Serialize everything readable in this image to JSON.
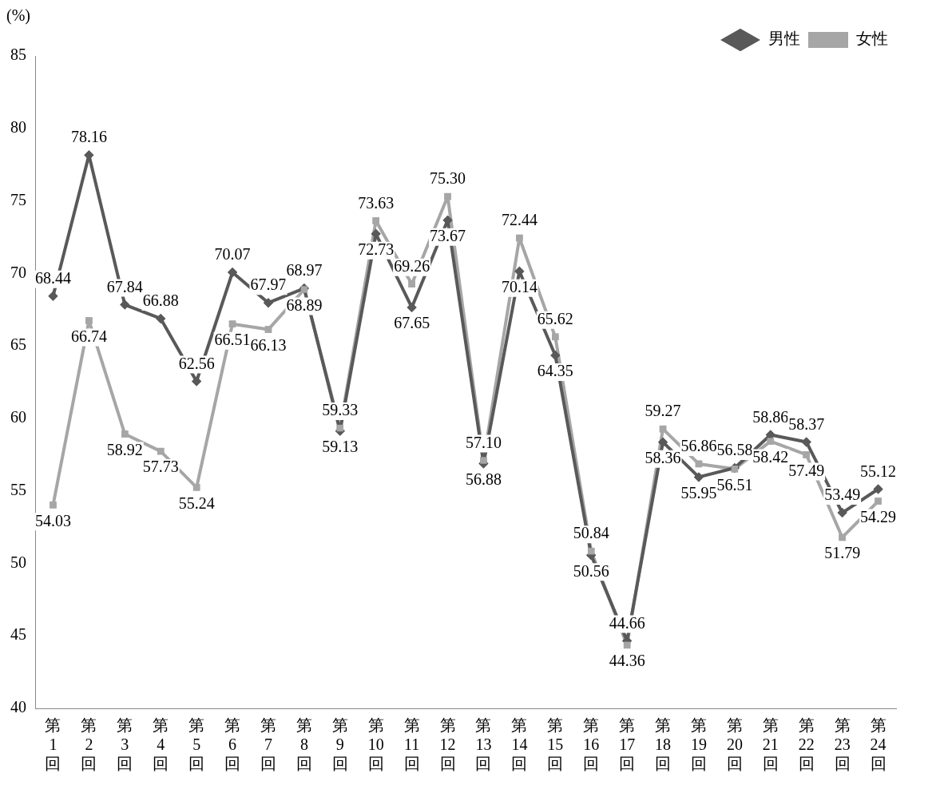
{
  "chart_data": {
    "type": "line",
    "ylabel": "(%)",
    "categories": [
      "第1回",
      "第2回",
      "第3回",
      "第4回",
      "第5回",
      "第6回",
      "第7回",
      "第8回",
      "第9回",
      "第10回",
      "第11回",
      "第12回",
      "第13回",
      "第14回",
      "第15回",
      "第16回",
      "第17回",
      "第18回",
      "第19回",
      "第20回",
      "第21回",
      "第22回",
      "第23回",
      "第24回"
    ],
    "series": [
      {
        "name": "男性",
        "color": "#595959",
        "marker": "diamond",
        "values": [
          68.44,
          78.16,
          67.84,
          66.88,
          62.56,
          70.07,
          67.97,
          68.97,
          59.13,
          72.73,
          67.65,
          73.67,
          56.88,
          70.14,
          64.35,
          50.56,
          44.66,
          58.36,
          55.95,
          56.58,
          58.86,
          58.37,
          53.49,
          55.12
        ],
        "value_labels": [
          "68.44",
          "78.16",
          "67.84",
          "66.88",
          "62.56",
          "70.07",
          "67.97",
          "68.97",
          "59.13",
          "72.73",
          "67.65",
          "73.67",
          "56.88",
          "70.14",
          "64.35",
          "50.56",
          "44.66",
          "58.36",
          "55.95",
          "56.58",
          "58.86",
          "58.37",
          "53.49",
          "55.12"
        ]
      },
      {
        "name": "女性",
        "color": "#a6a6a6",
        "marker": "square",
        "values": [
          54.03,
          66.74,
          58.92,
          57.73,
          55.24,
          66.51,
          66.13,
          68.89,
          59.33,
          73.63,
          69.26,
          75.3,
          57.1,
          72.44,
          65.62,
          50.84,
          44.36,
          59.27,
          56.86,
          56.51,
          58.42,
          57.49,
          51.79,
          54.29
        ],
        "value_labels": [
          "54.03",
          "66.74",
          "58.92",
          "57.73",
          "55.24",
          "66.51",
          "66.13",
          "68.89",
          "59.33",
          "73.63",
          "69.26",
          "75.30",
          "57.10",
          "72.44",
          "65.62",
          "50.84",
          "44.36",
          "59.27",
          "56.86",
          "56.51",
          "58.42",
          "57.49",
          "51.79",
          "54.29"
        ]
      }
    ],
    "ylim": [
      40,
      85
    ],
    "yticks": [
      40,
      45,
      50,
      55,
      60,
      65,
      70,
      75,
      80,
      85
    ],
    "legend": "top",
    "data_labels": true,
    "line_style": "solid"
  }
}
